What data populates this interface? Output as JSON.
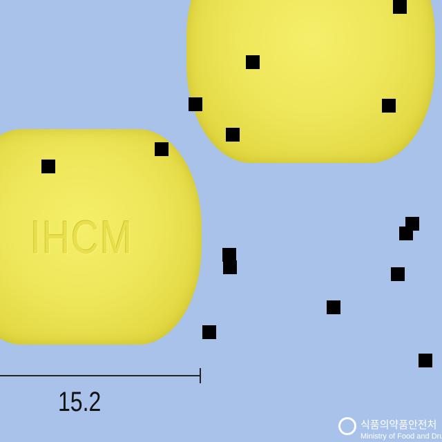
{
  "image": {
    "background_color": "#a9c2ea",
    "tablet_color": "#eee65a",
    "tablet_imprint": "IHCM",
    "scale_label": "15.2"
  },
  "watermark": {
    "korean": "식품의약품안전처",
    "english": "Ministry of Food and Drug Safety"
  }
}
